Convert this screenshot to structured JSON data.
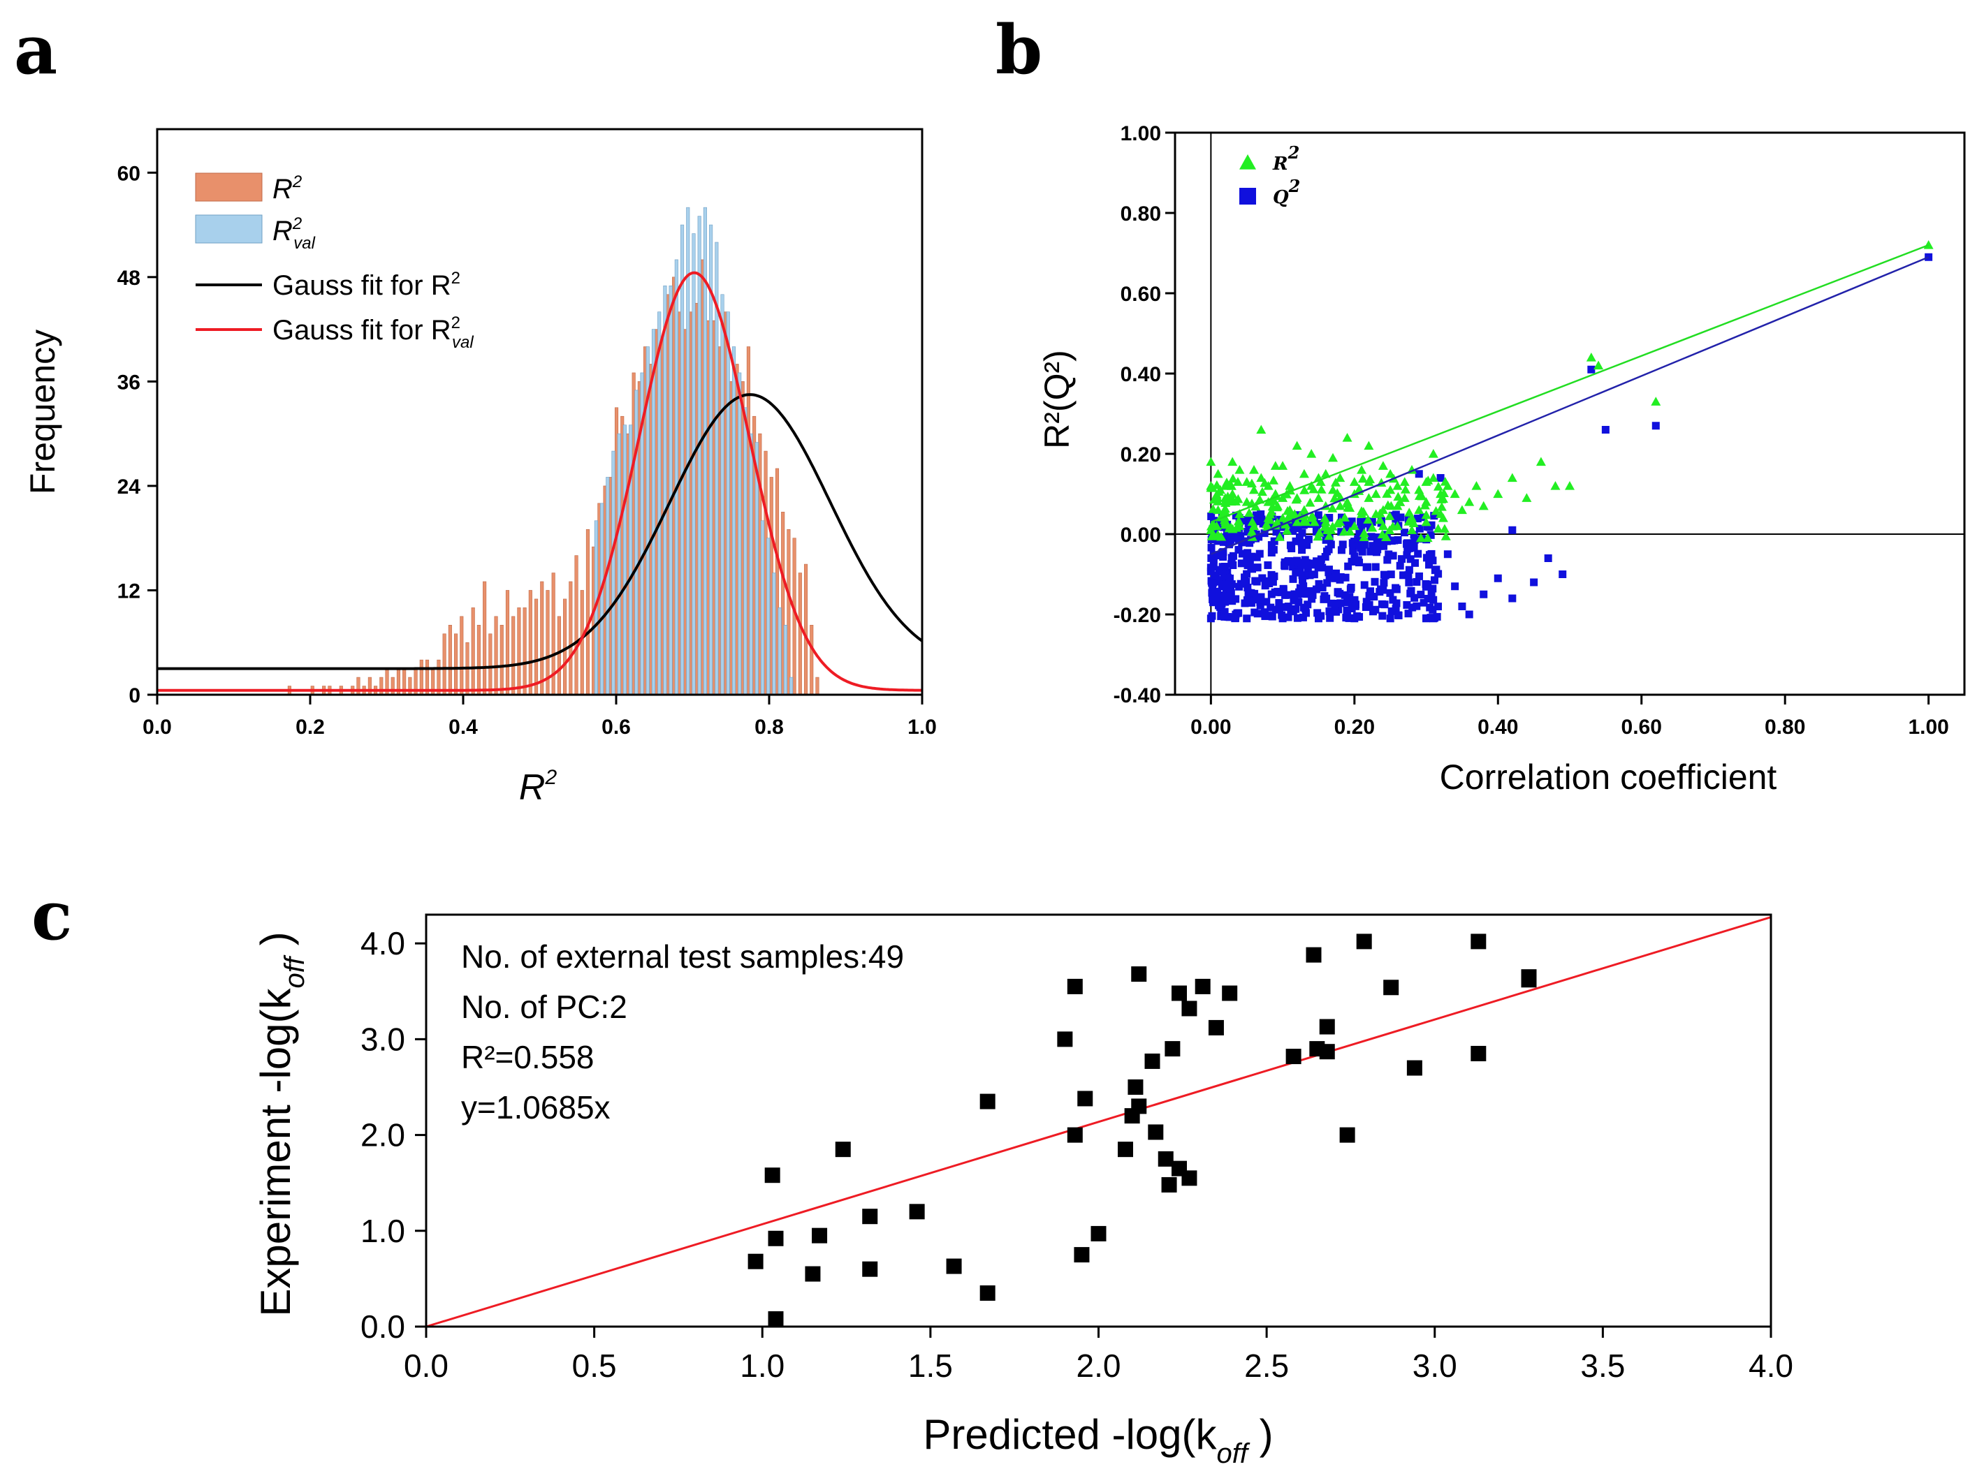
{
  "panels": {
    "a": "a",
    "b": "b",
    "c": "c"
  },
  "chart_data": [
    {
      "id": "a",
      "type": "bar",
      "xlabel": "R",
      "xlabel_sup": "2",
      "ylabel": "Frequency",
      "xlim": [
        0.0,
        1.0
      ],
      "ylim": [
        0,
        65
      ],
      "xticks": [
        0.0,
        0.2,
        0.4,
        0.6,
        0.8,
        1.0
      ],
      "xtick_labels": [
        "0.0",
        "0.2",
        "0.4",
        "0.6",
        "0.8",
        "1.0"
      ],
      "yticks": [
        0,
        12,
        24,
        36,
        48,
        60
      ],
      "ytick_labels": [
        "0",
        "12",
        "24",
        "36",
        "48",
        "60"
      ],
      "bin_width": 0.0075,
      "bins_r2_start": 0.17,
      "r2_freq": [
        1,
        0,
        0,
        0,
        1,
        0,
        1,
        1,
        0,
        1,
        0,
        1,
        2,
        1,
        2,
        1,
        2,
        3,
        2,
        3,
        3,
        2,
        3,
        4,
        4,
        3,
        4,
        7,
        8,
        7,
        9,
        6,
        10,
        8,
        13,
        7,
        9,
        8,
        12,
        9,
        10,
        10,
        12,
        11,
        13,
        12,
        14,
        9,
        11,
        13,
        16,
        12,
        19,
        17,
        22,
        24,
        25,
        33,
        32,
        30,
        37,
        36,
        40,
        38,
        42,
        41,
        46,
        48,
        44,
        42,
        44,
        45,
        50,
        43,
        43,
        40,
        44,
        36,
        38,
        36,
        40,
        32,
        30,
        28,
        25,
        26,
        21,
        19,
        18,
        14,
        15,
        8,
        2
      ],
      "bins_rval_start": 0.575,
      "rval_freq": [
        20,
        22,
        25,
        28,
        30,
        31,
        31,
        35,
        37,
        40,
        42,
        44,
        47,
        47,
        50,
        54,
        56,
        53,
        55,
        56,
        54,
        52,
        46,
        44,
        40,
        37,
        33,
        30,
        29,
        20,
        18,
        14,
        10,
        8,
        2
      ],
      "gauss_r2": {
        "mu": 0.775,
        "sigma": 0.105,
        "amp": 31.5,
        "base": 3
      },
      "gauss_rval": {
        "mu": 0.702,
        "sigma": 0.072,
        "amp": 48,
        "base": 0.5
      },
      "legend": [
        {
          "label": "R",
          "sup": "2",
          "sub": "",
          "kind": "bar",
          "color": "#E8906B"
        },
        {
          "label": "R",
          "sup": "2",
          "sub": "val",
          "kind": "bar",
          "color": "#A8D0EC"
        },
        {
          "label": "Gauss fit for R",
          "sup": "2",
          "sub": "",
          "kind": "line",
          "color": "#000000"
        },
        {
          "label": "Gauss fit for R",
          "sup": "2",
          "sub": "val",
          "kind": "line",
          "color": "#EE1C24"
        }
      ],
      "colors": {
        "r2": "#E8906B",
        "rval": "#A8D0EC",
        "fit_r2": "#000000",
        "fit_rval": "#EE1C24"
      },
      "legend_position": "top-left"
    },
    {
      "id": "b",
      "type": "scatter",
      "xlabel": "Correlation coefficient",
      "ylabel": "R²(Q²)",
      "xlim": [
        -0.05,
        1.05
      ],
      "ylim": [
        -0.4,
        1.0
      ],
      "xticks": [
        0.0,
        0.2,
        0.4,
        0.6,
        0.8,
        1.0
      ],
      "xtick_labels": [
        "0.00",
        "0.20",
        "0.40",
        "0.60",
        "0.80",
        "1.00"
      ],
      "yticks": [
        -0.4,
        -0.2,
        0.0,
        0.2,
        0.4,
        0.6,
        0.8,
        1.0
      ],
      "ytick_labels": [
        "-0.40",
        "-0.20",
        "0.00",
        "0.20",
        "0.40",
        "0.60",
        "0.80",
        "1.00"
      ],
      "series": [
        {
          "name": "R²",
          "marker": "triangle",
          "color": "#22EE22",
          "fit": {
            "intercept": 0.03,
            "slope": 0.69
          },
          "points": [
            [
              1.0,
              0.72
            ],
            [
              0.53,
              0.44
            ],
            [
              0.54,
              0.42
            ],
            [
              0.62,
              0.33
            ],
            [
              0.07,
              0.26
            ],
            [
              0.0,
              0.18
            ],
            [
              0.19,
              0.24
            ],
            [
              0.22,
              0.22
            ],
            [
              0.31,
              0.2
            ],
            [
              0.46,
              0.18
            ],
            [
              0.48,
              0.12
            ],
            [
              0.5,
              0.12
            ],
            [
              0.42,
              0.14
            ],
            [
              0.4,
              0.1
            ],
            [
              0.36,
              0.08
            ],
            [
              0.33,
              0.12
            ],
            [
              0.29,
              0.11
            ],
            [
              0.27,
              0.09
            ],
            [
              0.25,
              0.15
            ],
            [
              0.23,
              0.1
            ],
            [
              0.17,
              0.19
            ],
            [
              0.14,
              0.2
            ],
            [
              0.12,
              0.22
            ],
            [
              0.09,
              0.17
            ],
            [
              0.05,
              0.13
            ],
            [
              0.03,
              0.1
            ],
            [
              0.01,
              0.06
            ],
            [
              0.02,
              0.03
            ],
            [
              0.04,
              0.05
            ],
            [
              0.06,
              0.02
            ],
            [
              0.08,
              0.08
            ],
            [
              0.1,
              0.04
            ],
            [
              0.11,
              0.12
            ],
            [
              0.13,
              0.06
            ],
            [
              0.15,
              0.09
            ],
            [
              0.16,
              0.03
            ],
            [
              0.18,
              0.07
            ],
            [
              0.2,
              0.13
            ],
            [
              0.21,
              0.05
            ],
            [
              0.24,
              0.06
            ],
            [
              0.26,
              0.02
            ],
            [
              0.28,
              0.04
            ],
            [
              0.3,
              0.08
            ],
            [
              0.32,
              0.05
            ],
            [
              0.34,
              0.1
            ],
            [
              0.38,
              0.07
            ],
            [
              0.44,
              0.09
            ],
            [
              0.0,
              0.12
            ],
            [
              0.01,
              0.15
            ],
            [
              0.03,
              0.18
            ],
            [
              0.05,
              0.08
            ],
            [
              0.07,
              0.14
            ],
            [
              0.09,
              0.1
            ],
            [
              0.11,
              0.06
            ],
            [
              0.13,
              0.15
            ],
            [
              0.15,
              0.14
            ],
            [
              0.17,
              0.11
            ],
            [
              0.19,
              0.08
            ],
            [
              0.21,
              0.16
            ],
            [
              0.23,
              0.05
            ],
            [
              0.25,
              0.11
            ],
            [
              0.27,
              0.13
            ],
            [
              0.29,
              0.06
            ],
            [
              0.31,
              0.14
            ],
            [
              0.02,
              0.09
            ],
            [
              0.04,
              0.16
            ],
            [
              0.06,
              0.11
            ],
            [
              0.08,
              0.04
            ],
            [
              0.1,
              0.09
            ],
            [
              0.12,
              0.03
            ],
            [
              0.14,
              0.12
            ],
            [
              0.16,
              0.07
            ],
            [
              0.18,
              0.14
            ],
            [
              0.2,
              0.02
            ],
            [
              0.22,
              0.09
            ],
            [
              0.24,
              0.17
            ],
            [
              0.26,
              0.07
            ],
            [
              0.28,
              0.16
            ],
            [
              0.3,
              0.03
            ],
            [
              0.0,
              0.01
            ],
            [
              0.02,
              0.12
            ],
            [
              0.04,
              0.02
            ],
            [
              0.06,
              0.16
            ],
            [
              0.08,
              0.12
            ],
            [
              0.1,
              0.17
            ],
            [
              0.12,
              0.09
            ],
            [
              0.14,
              0.04
            ],
            [
              0.16,
              0.15
            ],
            [
              0.18,
              0.03
            ],
            [
              0.2,
              0.1
            ],
            [
              0.22,
              0.13
            ],
            [
              0.24,
              0.02
            ],
            [
              0.26,
              0.12
            ],
            [
              0.28,
              0.01
            ],
            [
              0.3,
              0.13
            ],
            [
              0.32,
              0.1
            ],
            [
              0.35,
              0.06
            ],
            [
              0.37,
              0.12
            ]
          ]
        },
        {
          "name": "Q²",
          "marker": "square",
          "color": "#1010DD",
          "fit": {
            "intercept": -0.05,
            "slope": 0.74
          },
          "points": [
            [
              1.0,
              0.69
            ],
            [
              0.53,
              0.41
            ],
            [
              0.55,
              0.26
            ],
            [
              0.62,
              0.27
            ],
            [
              0.32,
              0.14
            ],
            [
              0.29,
              0.15
            ],
            [
              0.42,
              0.01
            ],
            [
              0.47,
              -0.06
            ],
            [
              0.49,
              -0.1
            ],
            [
              0.45,
              -0.12
            ],
            [
              0.42,
              -0.16
            ],
            [
              0.4,
              -0.11
            ],
            [
              0.38,
              -0.15
            ],
            [
              0.36,
              -0.2
            ],
            [
              0.34,
              -0.13
            ],
            [
              0.35,
              -0.18
            ],
            [
              0.31,
              -0.21
            ],
            [
              0.33,
              -0.05
            ],
            [
              0.0,
              -0.21
            ],
            [
              0.05,
              -0.21
            ],
            [
              0.1,
              -0.21
            ],
            [
              0.15,
              -0.21
            ],
            [
              0.2,
              -0.21
            ],
            [
              0.25,
              -0.21
            ],
            [
              0.3,
              -0.21
            ]
          ],
          "dense_region": {
            "x": [
              0.0,
              0.32
            ],
            "y": [
              -0.21,
              0.05
            ]
          }
        }
      ],
      "legend": [
        {
          "label": "R",
          "sup": "2",
          "kind": "triangle",
          "color": "#22EE22"
        },
        {
          "label": "Q",
          "sup": "2",
          "kind": "square",
          "color": "#1010DD"
        }
      ],
      "legend_position": "top-left"
    },
    {
      "id": "c",
      "type": "scatter",
      "xlabel": "Predicted -log(k",
      "xlabel_sub": "off",
      "ylabel": "Experiment -log(k",
      "ylabel_sub": "off",
      "xlim": [
        0.0,
        4.0
      ],
      "ylim": [
        0.0,
        4.3
      ],
      "xticks": [
        0.0,
        0.5,
        1.0,
        1.5,
        2.0,
        2.5,
        3.0,
        3.5,
        4.0
      ],
      "xtick_labels": [
        "0.0",
        "0.5",
        "1.0",
        "1.5",
        "2.0",
        "2.5",
        "3.0",
        "3.5",
        "4.0"
      ],
      "yticks": [
        0.0,
        1.0,
        2.0,
        3.0,
        4.0
      ],
      "ytick_labels": [
        "0.0",
        "1.0",
        "2.0",
        "3.0",
        "4.0"
      ],
      "fit": {
        "slope": 1.0685,
        "color": "#EE1C24"
      },
      "annotations": [
        "No. of external test samples:49",
        "No. of PC:2",
        "R²=0.558",
        "y=1.0685x"
      ],
      "points": [
        [
          0.98,
          0.68
        ],
        [
          1.03,
          1.58
        ],
        [
          1.04,
          0.92
        ],
        [
          1.04,
          0.08
        ],
        [
          1.15,
          0.55
        ],
        [
          1.17,
          0.95
        ],
        [
          1.24,
          1.85
        ],
        [
          1.32,
          1.15
        ],
        [
          1.32,
          0.6
        ],
        [
          1.46,
          1.2
        ],
        [
          1.57,
          0.63
        ],
        [
          1.67,
          0.35
        ],
        [
          1.67,
          2.35
        ],
        [
          1.9,
          3.0
        ],
        [
          1.93,
          3.55
        ],
        [
          1.93,
          2.0
        ],
        [
          1.95,
          0.75
        ],
        [
          1.96,
          2.38
        ],
        [
          2.0,
          0.97
        ],
        [
          2.08,
          1.85
        ],
        [
          2.1,
          2.2
        ],
        [
          2.11,
          2.5
        ],
        [
          2.12,
          2.3
        ],
        [
          2.12,
          3.68
        ],
        [
          2.16,
          2.77
        ],
        [
          2.17,
          2.03
        ],
        [
          2.2,
          1.75
        ],
        [
          2.21,
          1.48
        ],
        [
          2.22,
          2.9
        ],
        [
          2.24,
          1.65
        ],
        [
          2.24,
          3.48
        ],
        [
          2.27,
          3.32
        ],
        [
          2.27,
          1.55
        ],
        [
          2.31,
          3.55
        ],
        [
          2.35,
          3.12
        ],
        [
          2.39,
          3.48
        ],
        [
          2.58,
          2.82
        ],
        [
          2.64,
          3.88
        ],
        [
          2.65,
          2.9
        ],
        [
          2.68,
          3.13
        ],
        [
          2.68,
          2.87
        ],
        [
          2.74,
          2.0
        ],
        [
          2.79,
          4.02
        ],
        [
          2.87,
          3.54
        ],
        [
          2.94,
          2.7
        ],
        [
          3.13,
          4.02
        ],
        [
          3.13,
          2.85
        ],
        [
          3.28,
          3.62
        ],
        [
          3.28,
          3.65
        ]
      ]
    }
  ]
}
